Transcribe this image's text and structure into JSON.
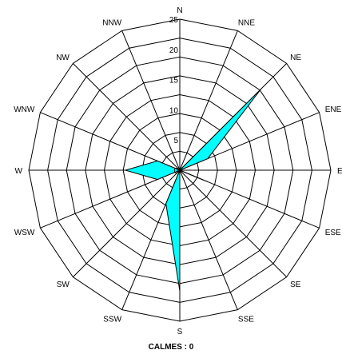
{
  "chart_data": {
    "type": "radar",
    "directions": [
      "N",
      "NNE",
      "NE",
      "ENE",
      "E",
      "ESE",
      "SE",
      "SSE",
      "S",
      "SSW",
      "SW",
      "WSW",
      "W",
      "WNW",
      "NW",
      "NNW"
    ],
    "ring_values": [
      0,
      5,
      10,
      15,
      20,
      25
    ],
    "rmax": 25,
    "values": [
      0,
      0,
      19,
      5,
      0,
      5,
      0,
      0,
      20,
      6,
      0,
      4,
      9,
      4,
      0,
      0
    ],
    "fill_color": "#00ffff",
    "footer": "CALMES : 0",
    "grid": true
  }
}
